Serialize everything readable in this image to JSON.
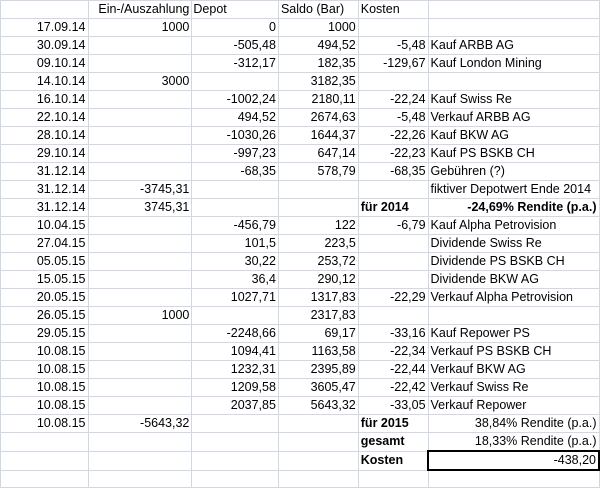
{
  "colors": {
    "negative": "#e60000",
    "grid": "#d0d7e5",
    "text": "#000000"
  },
  "headers": [
    "",
    "Ein-/Auszahlung",
    "Depot",
    "Saldo (Bar)",
    "Kosten",
    ""
  ],
  "rows": [
    [
      "17.09.14",
      "1000",
      "0",
      "1000",
      "",
      ""
    ],
    [
      "30.09.14",
      "",
      "-505,48",
      "494,52",
      "-5,48",
      "Kauf ARBB AG"
    ],
    [
      "09.10.14",
      "",
      "-312,17",
      "182,35",
      "-129,67",
      "Kauf London Mining"
    ],
    [
      "14.10.14",
      "3000",
      "",
      "3182,35",
      "",
      ""
    ],
    [
      "16.10.14",
      "",
      "-1002,24",
      "2180,11",
      "-22,24",
      "Kauf Swiss Re"
    ],
    [
      "22.10.14",
      "",
      "494,52",
      "2674,63",
      "-5,48",
      "Verkauf ARBB AG"
    ],
    [
      "28.10.14",
      "",
      "-1030,26",
      "1644,37",
      "-22,26",
      "Kauf BKW AG"
    ],
    [
      "29.10.14",
      "",
      "-997,23",
      "647,14",
      "-22,23",
      "Kauf PS BSKB CH"
    ],
    [
      "31.12.14",
      "",
      "-68,35",
      "578,79",
      "-68,35",
      "Gebühren (?)"
    ],
    [
      "31.12.14",
      "-3745,31",
      "",
      "",
      "",
      "fiktiver Depotwert Ende 2014"
    ],
    [
      "31.12.14",
      "3745,31",
      "",
      "",
      "für 2014",
      "-24,69% Rendite (p.a.)"
    ],
    [
      "10.04.15",
      "",
      "-456,79",
      "122",
      "-6,79",
      "Kauf Alpha Petrovision"
    ],
    [
      "27.04.15",
      "",
      "101,5",
      "223,5",
      "",
      "Dividende Swiss Re"
    ],
    [
      "05.05.15",
      "",
      "30,22",
      "253,72",
      "",
      "Dividende PS BSKB CH"
    ],
    [
      "15.05.15",
      "",
      "36,4",
      "290,12",
      "",
      "Dividende BKW AG"
    ],
    [
      "20.05.15",
      "",
      "1027,71",
      "1317,83",
      "-22,29",
      "Verkauf Alpha Petrovision"
    ],
    [
      "26.05.15",
      "1000",
      "",
      "2317,83",
      "",
      ""
    ],
    [
      "29.05.15",
      "",
      "-2248,66",
      "69,17",
      "-33,16",
      "Kauf Repower PS"
    ],
    [
      "10.08.15",
      "",
      "1094,41",
      "1163,58",
      "-22,34",
      "Verkauf PS BSKB CH"
    ],
    [
      "10.08.15",
      "",
      "1232,31",
      "2395,89",
      "-22,44",
      "Verkauf BKW AG"
    ],
    [
      "10.08.15",
      "",
      "1209,58",
      "3605,47",
      "-22,42",
      "Verkauf Swiss Re"
    ],
    [
      "10.08.15",
      "",
      "2037,85",
      "5643,32",
      "-33,05",
      "Verkauf Repower"
    ],
    [
      "10.08.15",
      "-5643,32",
      "",
      "",
      "für 2015",
      "38,84% Rendite (p.a.)"
    ],
    [
      "",
      "",
      "",
      "",
      "gesamt",
      "18,33% Rendite (p.a.)"
    ],
    [
      "",
      "",
      "",
      "",
      "Kosten",
      "-438,20"
    ],
    [
      "",
      "",
      "",
      "",
      "",
      ""
    ]
  ]
}
